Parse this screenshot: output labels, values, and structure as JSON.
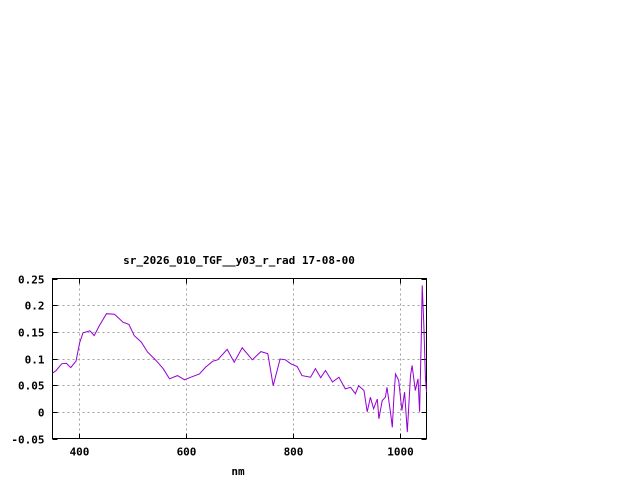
{
  "chart_data": {
    "type": "line",
    "title": "sr_2026_010_TGF__y03_r_rad 17-08-00",
    "xlabel": "nm",
    "ylabel": "",
    "xlim": [
      350,
      1050
    ],
    "ylim": [
      -0.05,
      0.25
    ],
    "xticks": [
      400,
      600,
      800,
      1000
    ],
    "xtick_labels": [
      "400",
      "600",
      "800",
      "1000"
    ],
    "yticks": [
      -0.05,
      0,
      0.05,
      0.1,
      0.15,
      0.2,
      0.25
    ],
    "ytick_labels": [
      "-0.05",
      "0",
      "0.05",
      "0.1",
      "0.15",
      "0.2",
      "0.25"
    ],
    "grid": true,
    "legend": "none",
    "line_color": "#9400d3",
    "series": [
      {
        "x": [
          350,
          357,
          367,
          376,
          384,
          394,
          401,
          407,
          420,
          428,
          438,
          451,
          466,
          482,
          493,
          503,
          516,
          528,
          544,
          557,
          569,
          584,
          597,
          609,
          625,
          637,
          650,
          659,
          677,
          690,
          705,
          724,
          740,
          753,
          763,
          776,
          786,
          796,
          808,
          817,
          833,
          842,
          852,
          861,
          874,
          886,
          898,
          908,
          917,
          923,
          933,
          939,
          945,
          951,
          958,
          961,
          967,
          973,
          976,
          983,
          986,
          989,
          992,
          998,
          1004,
          1009,
          1014,
          1020,
          1023,
          1029,
          1034,
          1037,
          1040,
          1042,
          1045,
          1048,
          1050
        ],
        "y": [
          0.0725,
          0.0775,
          0.09,
          0.091,
          0.083,
          0.095,
          0.13,
          0.148,
          0.152,
          0.143,
          0.162,
          0.184,
          0.183,
          0.168,
          0.164,
          0.143,
          0.131,
          0.112,
          0.096,
          0.081,
          0.062,
          0.068,
          0.06,
          0.065,
          0.071,
          0.084,
          0.095,
          0.0975,
          0.117,
          0.093,
          0.12,
          0.0975,
          0.113,
          0.109,
          0.049,
          0.099,
          0.0975,
          0.09,
          0.085,
          0.068,
          0.065,
          0.081,
          0.064,
          0.0775,
          0.056,
          0.065,
          0.043,
          0.046,
          0.034,
          0.049,
          0.04,
          0.0,
          0.0275,
          0.0056,
          0.024,
          -0.013,
          0.021,
          0.0275,
          0.046,
          -0.004,
          -0.029,
          0.0275,
          0.071,
          0.059,
          0.0025,
          0.037,
          -0.038,
          0.068,
          0.087,
          0.04,
          0.062,
          0.0,
          0.134,
          0.237,
          0.165,
          0.065,
          0.037
        ]
      }
    ]
  }
}
